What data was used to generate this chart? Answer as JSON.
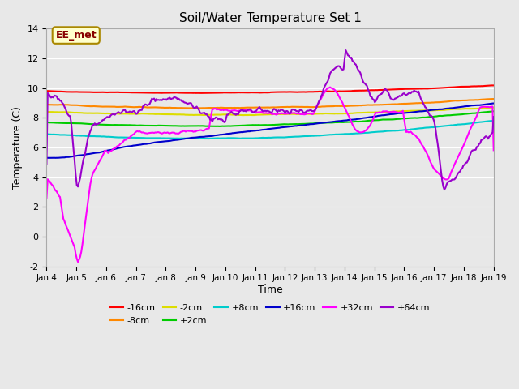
{
  "title": "Soil/Water Temperature Set 1",
  "xlabel": "Time",
  "ylabel": "Temperature (C)",
  "xlim": [
    0,
    15
  ],
  "ylim": [
    -2,
    14
  ],
  "yticks": [
    -2,
    0,
    2,
    4,
    6,
    8,
    10,
    12,
    14
  ],
  "xtick_labels": [
    "Jan 4",
    "Jan 5",
    "Jan 6",
    "Jan 7",
    "Jan 8",
    "Jan 9",
    "Jan 10",
    "Jan 11",
    "Jan 12",
    "Jan 13",
    "Jan 14",
    "Jan 15",
    "Jan 16",
    "Jan 17",
    "Jan 18",
    "Jan 19"
  ],
  "background_color": "#e8e8e8",
  "plot_bg_color": "#e8e8e8",
  "annotation_text": "EE_met",
  "annotation_bg": "#ffffcc",
  "annotation_border": "#aa8800",
  "annotation_text_color": "#880000",
  "series": {
    "-16cm": {
      "color": "#ff0000",
      "lw": 1.5
    },
    "-8cm": {
      "color": "#ff8800",
      "lw": 1.5
    },
    "-2cm": {
      "color": "#dddd00",
      "lw": 1.5
    },
    "+2cm": {
      "color": "#00cc00",
      "lw": 1.5
    },
    "+8cm": {
      "color": "#00cccc",
      "lw": 1.5
    },
    "+16cm": {
      "color": "#0000cc",
      "lw": 1.5
    },
    "+32cm": {
      "color": "#ff00ff",
      "lw": 1.5
    },
    "+64cm": {
      "color": "#9900cc",
      "lw": 1.5
    }
  }
}
